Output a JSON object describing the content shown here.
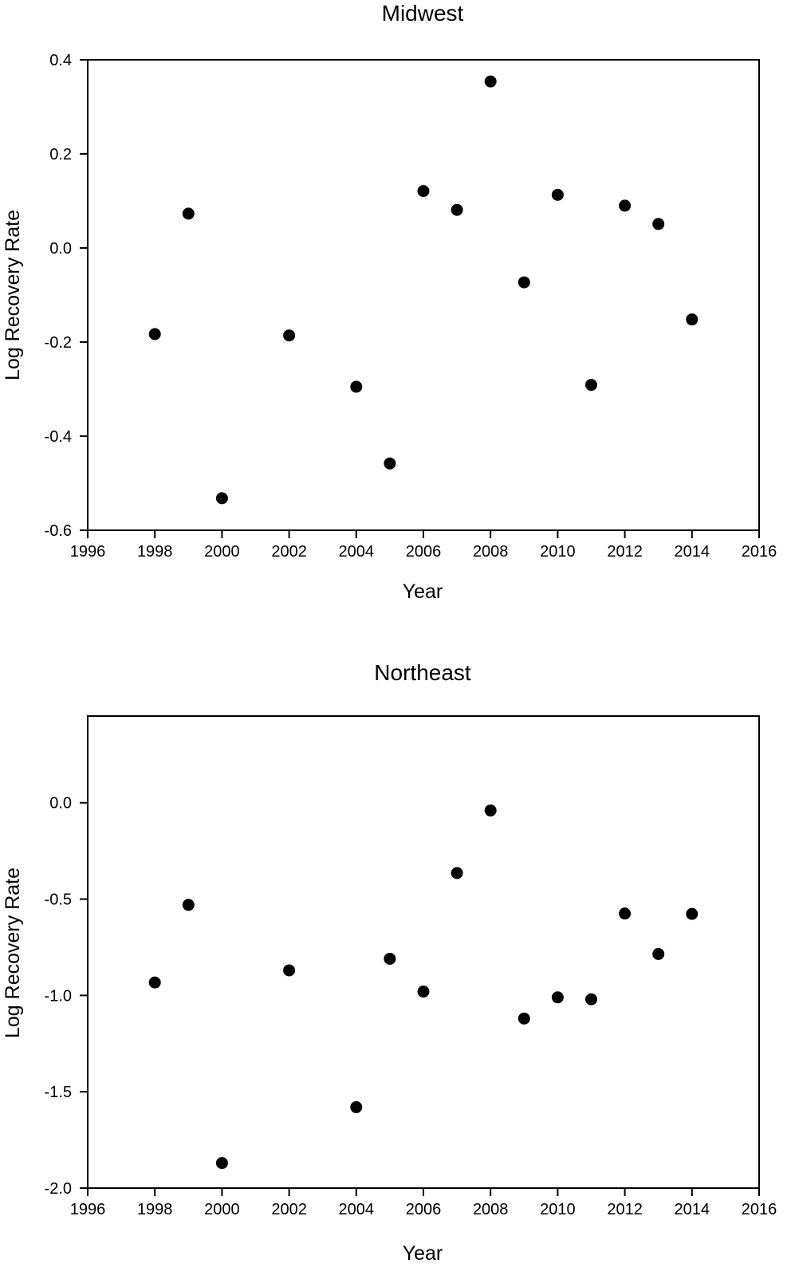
{
  "chart_data": [
    {
      "type": "scatter",
      "title": "Midwest",
      "xlabel": "Year",
      "ylabel": "Log Recovery Rate",
      "xlim": [
        1996,
        2016
      ],
      "ylim": [
        -0.6,
        0.4
      ],
      "x_ticks": [
        "1996",
        "1998",
        "2000",
        "2002",
        "2004",
        "2006",
        "2008",
        "2010",
        "2012",
        "2014",
        "2016"
      ],
      "y_ticks": [
        "0.4",
        "0.2",
        "0.0",
        "-0.2",
        "-0.4",
        "-0.6"
      ],
      "grid": false,
      "series": [
        {
          "x": [
            1998,
            1999,
            2000,
            2002,
            2004,
            2005,
            2006,
            2007,
            2008,
            2009,
            2010,
            2011,
            2012,
            2013,
            2014
          ],
          "y": [
            -0.183,
            0.073,
            -0.532,
            -0.186,
            -0.295,
            -0.458,
            0.121,
            0.081,
            0.354,
            -0.073,
            0.113,
            -0.291,
            0.09,
            0.051,
            -0.152
          ]
        }
      ]
    },
    {
      "type": "scatter",
      "title": "Northeast",
      "xlabel": "Year",
      "ylabel": "Log Recovery Rate",
      "xlim": [
        1996,
        2016
      ],
      "ylim": [
        -2.0,
        0.45
      ],
      "x_ticks": [
        "1996",
        "1998",
        "2000",
        "2002",
        "2004",
        "2006",
        "2008",
        "2010",
        "2012",
        "2014",
        "2016"
      ],
      "y_ticks": [
        "0.0",
        "-0.5",
        "-1.0",
        "-1.5",
        "-2.0"
      ],
      "grid": false,
      "series": [
        {
          "x": [
            1998,
            1999,
            2000,
            2002,
            2004,
            2005,
            2006,
            2007,
            2008,
            2009,
            2010,
            2011,
            2012,
            2013,
            2014
          ],
          "y": [
            -0.933,
            -0.53,
            -1.87,
            -0.87,
            -1.58,
            -0.81,
            -0.98,
            -0.365,
            -0.04,
            -1.12,
            -1.01,
            -1.02,
            -0.575,
            -0.785,
            -0.577
          ]
        }
      ]
    }
  ]
}
